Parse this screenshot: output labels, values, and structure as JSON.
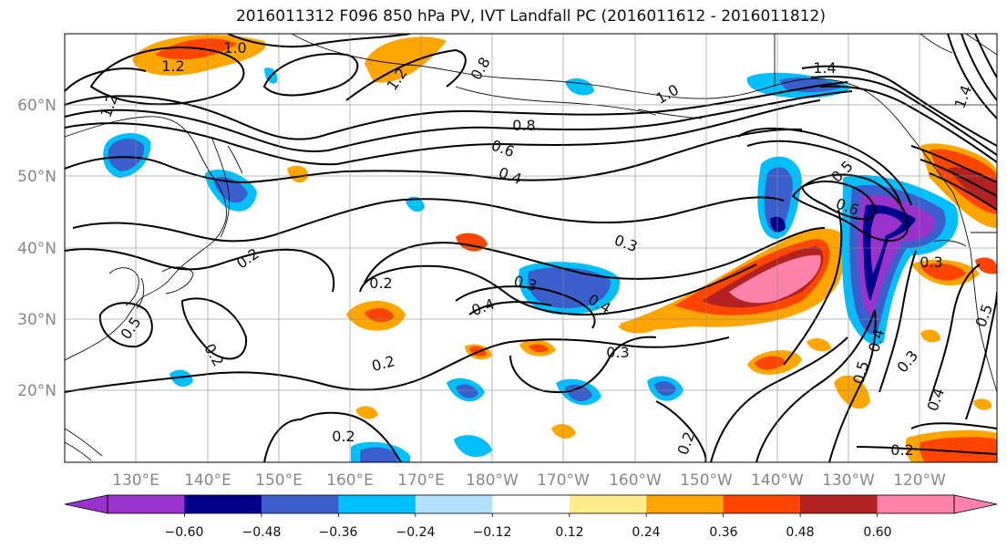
{
  "title": "2016011312 F096 850 hPa PV, IVT Landfall PC (2016011612 - 2016011812)",
  "lat_labels": [
    "60°N",
    "50°N",
    "40°N",
    "30°N",
    "20°N"
  ],
  "lon_labels": [
    "130°E",
    "140°E",
    "150°E",
    "160°E",
    "170°E",
    "180°W",
    "170°W",
    "160°W",
    "150°W",
    "140°W",
    "130°W",
    "120°W"
  ],
  "contour_labels": [
    "1.2",
    "1.0",
    "1.2",
    "0.8",
    "1.2",
    "1.0",
    "1.4",
    "1.4",
    "0.8",
    "0.6",
    "0.4",
    "0.6",
    "0.5",
    "0.3",
    "0.2",
    "0.2",
    "0.3",
    "0.4",
    "0.4",
    "0.3",
    "0.2",
    "0.2",
    "0.5",
    "0.2",
    "0.4",
    "0.5",
    "0.3",
    "0.4",
    "0.2",
    "0.2",
    "0.3",
    "0.5"
  ],
  "colorbar": {
    "colors": [
      "#9932cc",
      "#00008b",
      "#3a5fcd",
      "#00bfff",
      "#b0e2ff",
      "#ffffff",
      "#ffec8b",
      "#ffa500",
      "#ff4500",
      "#b22222",
      "#ff82ab"
    ],
    "tick_labels": [
      "−0.60",
      "−0.48",
      "−0.36",
      "−0.24",
      "−0.12",
      "0.12",
      "0.24",
      "0.36",
      "0.48",
      "0.60"
    ]
  },
  "chart_data": {
    "type": "heatmap",
    "projection": "PlateCarree",
    "lon_range_deg_east": [
      120,
      251
    ],
    "lat_range": [
      10,
      70
    ],
    "gridlines": "every 10°",
    "fill_field_levels": [
      -0.6,
      -0.48,
      -0.36,
      -0.24,
      -0.12,
      0.12,
      0.24,
      0.36,
      0.48,
      0.6
    ],
    "contour_field_levels": [
      0.2,
      0.3,
      0.4,
      0.5,
      0.6,
      0.8,
      1.0,
      1.2,
      1.4
    ],
    "colorbar_extend": "both"
  }
}
